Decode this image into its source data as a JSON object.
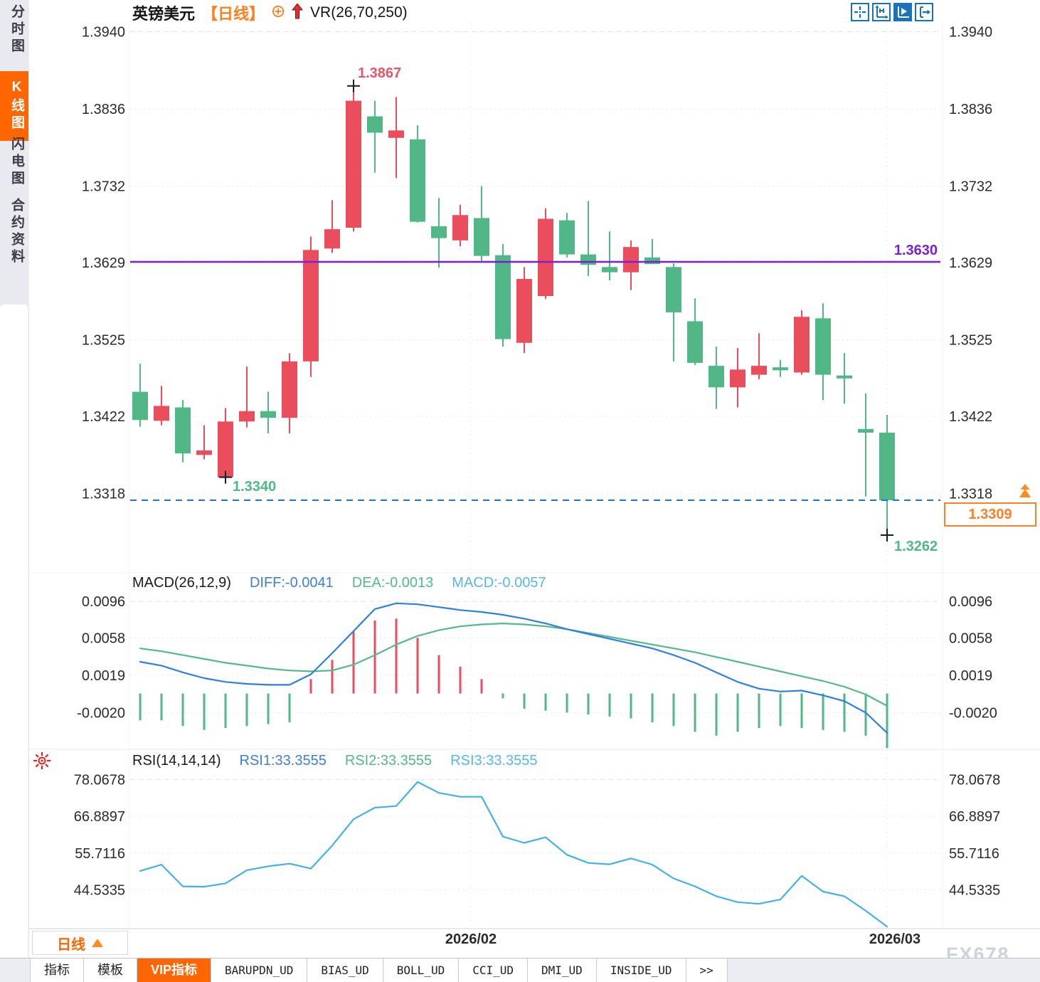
{
  "window": {
    "watermark": "FX678"
  },
  "sidebar": {
    "items": [
      {
        "label": "分时图",
        "active": false
      },
      {
        "label": "K线图",
        "active": true
      },
      {
        "label": "闪电图",
        "active": false
      },
      {
        "label": "合约资料",
        "active": false
      }
    ]
  },
  "header": {
    "symbol": "英镑美元",
    "period_tag": "【日线】",
    "overlay": "VR(26,70,250)"
  },
  "toolbar": {
    "icons": [
      "crosshair",
      "axis-scale",
      "axis-play",
      "exit-right"
    ]
  },
  "footer": {
    "period_label": "日线",
    "tabs": [
      {
        "label": "指标",
        "active": false
      },
      {
        "label": "模板",
        "active": false
      },
      {
        "label": "VIP指标",
        "active": true
      },
      {
        "label": "BARUPDN_UD",
        "active": false
      },
      {
        "label": "BIAS_UD",
        "active": false
      },
      {
        "label": "BOLL_UD",
        "active": false
      },
      {
        "label": "CCI_UD",
        "active": false
      },
      {
        "label": "DMI_UD",
        "active": false
      },
      {
        "label": "INSIDE_UD",
        "active": false
      },
      {
        "label": ">>",
        "active": false
      }
    ]
  },
  "colors": {
    "up": "#ea4d5c",
    "down": "#52b787",
    "diff_line": "#2f7fe0",
    "dea_line": "#54b98a",
    "rsi_line": "#45b0e8",
    "hline_purple": "#7c1fd0",
    "price_line_blue": "#1879e0",
    "accent_orange": "#ff6600",
    "grid": "#e1e1e1"
  },
  "chart_data": [
    {
      "type": "candlestick",
      "title": "英镑美元 日线",
      "ylim": [
        1.3216,
        1.3952
      ],
      "y_ticks": [
        1.394,
        1.3836,
        1.3732,
        1.3629,
        1.3525,
        1.3422,
        1.3318
      ],
      "candles": [
        [
          1.3455,
          1.3493,
          1.3408,
          1.3417
        ],
        [
          1.3416,
          1.3463,
          1.341,
          1.3436
        ],
        [
          1.3434,
          1.3444,
          1.336,
          1.3372
        ],
        [
          1.337,
          1.341,
          1.3364,
          1.3376
        ],
        [
          1.334,
          1.3433,
          1.334,
          1.3415
        ],
        [
          1.3415,
          1.3489,
          1.3407,
          1.3429
        ],
        [
          1.3429,
          1.3455,
          1.3399,
          1.342
        ],
        [
          1.342,
          1.3507,
          1.3399,
          1.3496
        ],
        [
          1.3496,
          1.3664,
          1.3475,
          1.3646
        ],
        [
          1.3648,
          1.3713,
          1.3642,
          1.3674
        ],
        [
          1.3676,
          1.3867,
          1.3671,
          1.3847
        ],
        [
          1.3826,
          1.3847,
          1.375,
          1.3804
        ],
        [
          1.3797,
          1.3852,
          1.3743,
          1.3807
        ],
        [
          1.3795,
          1.3814,
          1.3683,
          1.3684
        ],
        [
          1.3678,
          1.3716,
          1.3622,
          1.3662
        ],
        [
          1.3659,
          1.3707,
          1.3651,
          1.3693
        ],
        [
          1.3689,
          1.3732,
          1.363,
          1.3638
        ],
        [
          1.3639,
          1.3654,
          1.3516,
          1.3526
        ],
        [
          1.3521,
          1.3623,
          1.3507,
          1.3607
        ],
        [
          1.3584,
          1.3702,
          1.358,
          1.3688
        ],
        [
          1.3686,
          1.3696,
          1.3636,
          1.364
        ],
        [
          1.364,
          1.3712,
          1.3611,
          1.3626
        ],
        [
          1.3623,
          1.3671,
          1.3605,
          1.3616
        ],
        [
          1.3616,
          1.3659,
          1.3592,
          1.365
        ],
        [
          1.3636,
          1.3661,
          1.3627,
          1.3627
        ],
        [
          1.3623,
          1.3628,
          1.3496,
          1.3562
        ],
        [
          1.355,
          1.3581,
          1.3491,
          1.3494
        ],
        [
          1.349,
          1.3516,
          1.3432,
          1.3461
        ],
        [
          1.3461,
          1.3514,
          1.3434,
          1.3485
        ],
        [
          1.3478,
          1.3534,
          1.3472,
          1.349
        ],
        [
          1.3488,
          1.3498,
          1.3475,
          1.3484
        ],
        [
          1.3481,
          1.3565,
          1.3478,
          1.3556
        ],
        [
          1.3554,
          1.3574,
          1.3444,
          1.3478
        ],
        [
          1.3477,
          1.3507,
          1.3439,
          1.3473
        ],
        [
          1.3405,
          1.3453,
          1.3314,
          1.34
        ],
        [
          1.34,
          1.3424,
          1.3262,
          1.3309
        ]
      ],
      "annotations": {
        "high": {
          "label": "1.3867",
          "index": 10,
          "value": 1.3867,
          "color": "#e8546a"
        },
        "low": {
          "label": "1.3340",
          "index": 4,
          "value": 1.334,
          "color": "#52b787"
        },
        "last_low": {
          "label": "1.3262",
          "index": 35,
          "value": 1.3262,
          "color": "#52b787"
        }
      },
      "hline": {
        "value": 1.363,
        "label": "1.3630",
        "color": "#7c1fd0"
      },
      "current_price_line": {
        "value": 1.3309,
        "label": "1.3309",
        "color": "#ff7f27"
      },
      "month_marks": [
        {
          "label": "2026/02",
          "index": 15.5
        },
        {
          "label": "2026/03",
          "index": 35.0
        }
      ]
    },
    {
      "type": "macd",
      "params_label": "MACD(26,12,9)",
      "legend": [
        {
          "label": "DIFF:-0.0041",
          "color": "#3f7fd6"
        },
        {
          "label": "DEA:-0.0013",
          "color": "#54b98a"
        },
        {
          "label": "MACD:-0.0057",
          "color": "#57b8e8"
        }
      ],
      "ylim": [
        -0.0056,
        0.0105
      ],
      "y_ticks": [
        0.0096,
        0.0058,
        0.0019,
        -0.002
      ],
      "diff": [
        0.0033,
        0.0029,
        0.0022,
        0.0016,
        0.0012,
        0.001,
        0.0009,
        0.0009,
        0.002,
        0.0042,
        0.0065,
        0.0088,
        0.0094,
        0.0093,
        0.009,
        0.0087,
        0.0085,
        0.0082,
        0.0078,
        0.0073,
        0.0067,
        0.0062,
        0.0057,
        0.0052,
        0.0047,
        0.004,
        0.0032,
        0.0022,
        0.0012,
        0.0005,
        0.0002,
        0.0003,
        -0.0002,
        -0.0008,
        -0.002,
        -0.0041
      ],
      "dea": [
        0.0047,
        0.0044,
        0.004,
        0.0036,
        0.0032,
        0.0029,
        0.0026,
        0.0024,
        0.0023,
        0.0024,
        0.003,
        0.004,
        0.0051,
        0.006,
        0.0066,
        0.007,
        0.0072,
        0.0073,
        0.0072,
        0.007,
        0.0067,
        0.0063,
        0.0059,
        0.0055,
        0.0051,
        0.0047,
        0.0043,
        0.0038,
        0.0033,
        0.0028,
        0.0023,
        0.0018,
        0.0013,
        0.0007,
        -0.0001,
        -0.0013
      ],
      "hist": [
        -0.0028,
        -0.0028,
        -0.0034,
        -0.0038,
        -0.0036,
        -0.0034,
        -0.0032,
        -0.003,
        0.0015,
        0.0035,
        0.0065,
        0.0076,
        0.0078,
        0.0058,
        0.004,
        0.0028,
        0.0015,
        -0.0005,
        -0.0016,
        -0.0018,
        -0.002,
        -0.0022,
        -0.0024,
        -0.0026,
        -0.003,
        -0.0034,
        -0.004,
        -0.0044,
        -0.004,
        -0.0036,
        -0.0034,
        -0.0036,
        -0.0038,
        -0.004,
        -0.0044,
        -0.0057
      ]
    },
    {
      "type": "rsi",
      "params_label": "RSI(14,14,14)",
      "legend": [
        {
          "label": "RSI1:33.3555",
          "color": "#3f7fd6"
        },
        {
          "label": "RSI2:33.3555",
          "color": "#54b98a"
        },
        {
          "label": "RSI3:33.3555",
          "color": "#57b8e8"
        }
      ],
      "ylim": [
        33.2,
        80.3
      ],
      "y_ticks": [
        78.0678,
        66.8897,
        55.7116,
        44.5335
      ],
      "values": [
        50.3,
        52.2,
        45.6,
        45.5,
        46.5,
        50.5,
        51.7,
        52.5,
        51.0,
        58.0,
        66.0,
        69.5,
        70.0,
        77.3,
        74.0,
        72.8,
        72.8,
        60.7,
        58.8,
        60.5,
        55.2,
        52.7,
        52.3,
        54.1,
        52.2,
        48.0,
        45.6,
        42.6,
        40.8,
        40.3,
        41.6,
        48.8,
        44.0,
        42.6,
        38.2,
        33.36
      ]
    }
  ]
}
